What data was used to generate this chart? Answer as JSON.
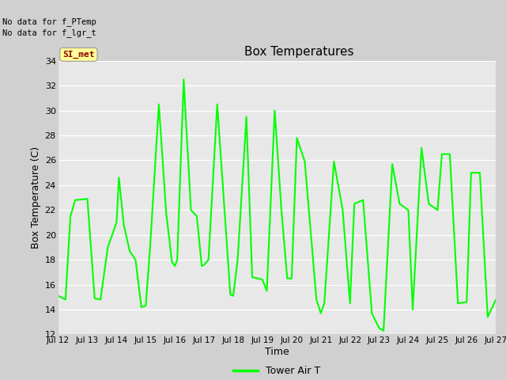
{
  "title": "Box Temperatures",
  "xlabel": "Time",
  "ylabel": "Box Temperature (C)",
  "text_no_data_1": "No data for f_PTemp",
  "text_no_data_2": "No data for f_lgr_t",
  "tab_label": "SI_met",
  "ylim": [
    12,
    34
  ],
  "yticks": [
    12,
    14,
    16,
    18,
    20,
    22,
    24,
    26,
    28,
    30,
    32,
    34
  ],
  "xtick_labels": [
    "Jul 12",
    "Jul 13",
    "Jul 14",
    "Jul 15",
    "Jul 16",
    "Jul 17",
    "Jul 18",
    "Jul 19",
    "Jul 20",
    "Jul 21",
    "Jul 22",
    "Jul 23",
    "Jul 24",
    "Jul 25",
    "Jul 26",
    "Jul 27"
  ],
  "line_color": "#00FF00",
  "line_width": 1.5,
  "legend_label": "Tower Air T",
  "x_values": [
    0.0,
    0.25,
    0.42,
    0.58,
    1.0,
    1.25,
    1.45,
    1.7,
    2.0,
    2.08,
    2.25,
    2.45,
    2.65,
    2.85,
    3.0,
    3.15,
    3.45,
    3.7,
    3.9,
    4.0,
    4.08,
    4.3,
    4.55,
    4.75,
    4.92,
    5.0,
    5.15,
    5.45,
    5.7,
    5.9,
    6.0,
    6.15,
    6.45,
    6.65,
    6.85,
    7.0,
    7.15,
    7.42,
    7.65,
    7.85,
    8.0,
    8.18,
    8.45,
    8.85,
    9.0,
    9.12,
    9.45,
    9.75,
    10.0,
    10.15,
    10.45,
    10.75,
    11.0,
    11.15,
    11.45,
    11.7,
    12.0,
    12.15,
    12.45,
    12.7,
    13.0,
    13.15,
    13.42,
    13.7,
    14.0,
    14.15,
    14.45,
    14.72,
    15.0
  ],
  "y_values": [
    15.1,
    14.8,
    21.5,
    22.8,
    22.9,
    14.9,
    14.8,
    19.0,
    21.0,
    24.6,
    20.8,
    18.7,
    18.0,
    14.2,
    14.3,
    19.0,
    30.5,
    21.8,
    17.8,
    17.5,
    18.0,
    32.5,
    22.0,
    21.5,
    17.5,
    17.6,
    18.0,
    30.5,
    22.0,
    15.2,
    15.1,
    18.0,
    29.5,
    16.6,
    16.5,
    16.4,
    15.5,
    30.0,
    22.0,
    16.5,
    16.5,
    27.8,
    25.9,
    14.8,
    13.7,
    14.5,
    25.9,
    22.0,
    14.5,
    22.5,
    22.8,
    13.7,
    12.5,
    12.3,
    25.7,
    22.5,
    22.0,
    14.0,
    27.0,
    22.5,
    22.0,
    26.5,
    26.5,
    14.5,
    14.6,
    25.0,
    25.0,
    13.4,
    14.8
  ]
}
